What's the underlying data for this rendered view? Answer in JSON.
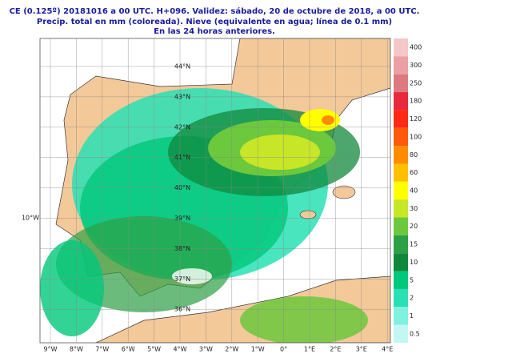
{
  "header": {
    "line1": "CE (0.125º) 20181016 a 00 UTC.  H+096. Validez: sábado, 20 de octubre de 2018,  a  00 UTC.",
    "line2": "Precip. total en mm (coloreada). Nieve (equivalente en agua; línea de 0.1 mm)",
    "line3": "En las 24 horas anteriores."
  },
  "legend": [
    {
      "label": "400",
      "color": "#f4c8c8"
    },
    {
      "label": "300",
      "color": "#eaa0a4"
    },
    {
      "label": "250",
      "color": "#dc7a80"
    },
    {
      "label": "180",
      "color": "#e8283c"
    },
    {
      "label": "120",
      "color": "#ff2a14"
    },
    {
      "label": "100",
      "color": "#ff5a0a"
    },
    {
      "label": "80",
      "color": "#ff8c00"
    },
    {
      "label": "60",
      "color": "#ffc000"
    },
    {
      "label": "40",
      "color": "#ffff00"
    },
    {
      "label": "30",
      "color": "#c8e628"
    },
    {
      "label": "20",
      "color": "#6cc83c"
    },
    {
      "label": "15",
      "color": "#2ca044"
    },
    {
      "label": "10",
      "color": "#10883c"
    },
    {
      "label": "5",
      "color": "#00c87a"
    },
    {
      "label": "2",
      "color": "#28e0b4"
    },
    {
      "label": "1",
      "color": "#80f0e0"
    },
    {
      "label": "0.5",
      "color": "#c4f6f4"
    }
  ],
  "longitudes": [
    "9°W",
    "8°W",
    "7°W",
    "6°W",
    "5°W",
    "4°W",
    "3°W",
    "2°W",
    "1°W",
    "0°",
    "1°E",
    "2°E",
    "3°E",
    "4°E"
  ],
  "latitudes": [
    "44°N",
    "43°N",
    "42°N",
    "41°N",
    "40°N",
    "39°N",
    "38°N",
    "37°N",
    "36°N"
  ],
  "west_label": "10°W"
}
